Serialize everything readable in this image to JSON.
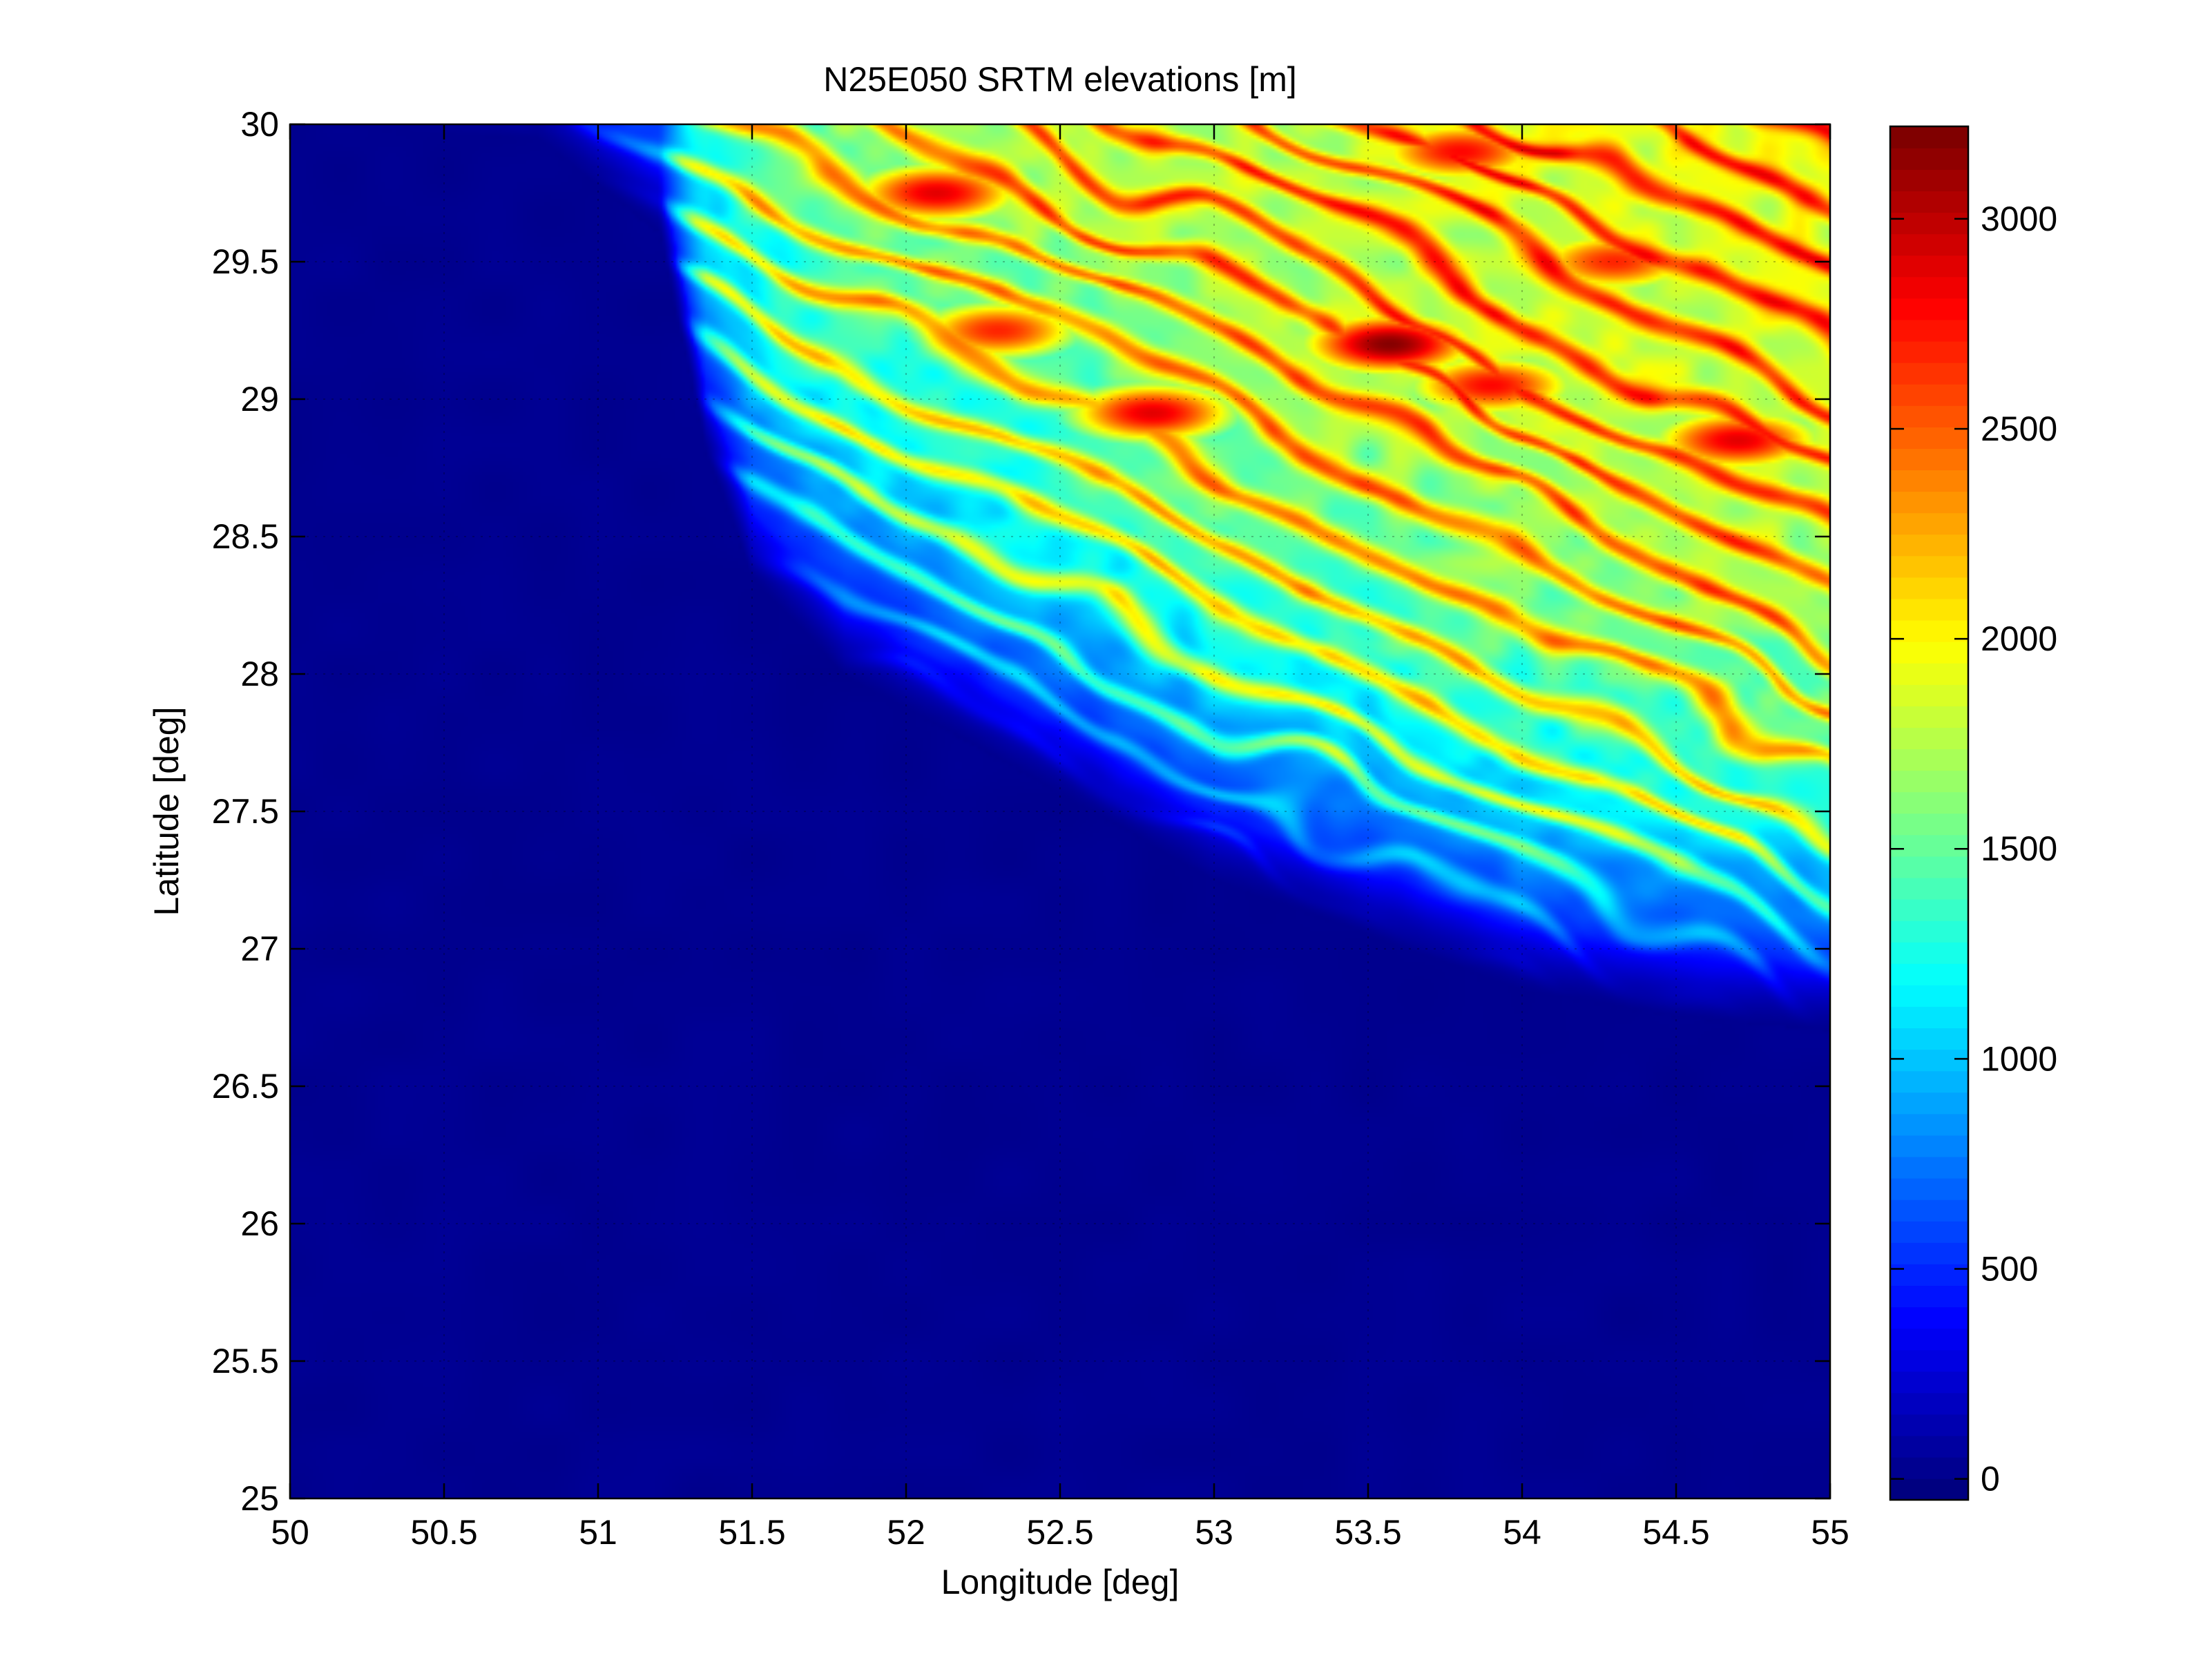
{
  "chart_data": {
    "type": "heatmap",
    "title": "N25E050 SRTM elevations [m]",
    "xlabel": "Longitude [deg]",
    "ylabel": "Latitude [deg]",
    "xlim": [
      50,
      55
    ],
    "ylim": [
      25,
      30
    ],
    "xticks": [
      50,
      50.5,
      51,
      51.5,
      52,
      52.5,
      53,
      53.5,
      54,
      54.5,
      55
    ],
    "xtick_labels": [
      "50",
      "50.5",
      "51",
      "51.5",
      "52",
      "52.5",
      "53",
      "53.5",
      "54",
      "54.5",
      "55"
    ],
    "yticks": [
      25,
      25.5,
      26,
      26.5,
      27,
      27.5,
      28,
      28.5,
      29,
      29.5,
      30
    ],
    "ytick_labels": [
      "25",
      "25.5",
      "26",
      "26.5",
      "27",
      "27.5",
      "28",
      "28.5",
      "29",
      "29.5",
      "30"
    ],
    "grid": true,
    "colormap": "jet",
    "colorbar": {
      "range": [
        -50,
        3220
      ],
      "ticks": [
        0,
        500,
        1000,
        1500,
        2000,
        2500,
        3000
      ],
      "tick_labels": [
        "0",
        "500",
        "1000",
        "1500",
        "2000",
        "2500",
        "3000"
      ]
    },
    "field": {
      "sea_level_value": 0,
      "coastline_lat_at_lon": [
        [
          50.0,
          30.0
        ],
        [
          50.8,
          29.95
        ],
        [
          51.2,
          29.6
        ],
        [
          51.35,
          28.8
        ],
        [
          51.5,
          28.35
        ],
        [
          51.8,
          28.0
        ],
        [
          52.2,
          27.75
        ],
        [
          52.6,
          27.5
        ],
        [
          53.0,
          27.25
        ],
        [
          53.5,
          27.05
        ],
        [
          54.0,
          26.85
        ],
        [
          54.5,
          26.75
        ],
        [
          55.0,
          26.7
        ]
      ],
      "highland_peaks": [
        {
          "lon": 52.1,
          "lat": 29.75,
          "elev": 2900
        },
        {
          "lon": 52.3,
          "lat": 29.25,
          "elev": 2700
        },
        {
          "lon": 52.8,
          "lat": 28.95,
          "elev": 2900
        },
        {
          "lon": 53.57,
          "lat": 29.2,
          "elev": 3200
        },
        {
          "lon": 53.9,
          "lat": 29.05,
          "elev": 2800
        },
        {
          "lon": 54.3,
          "lat": 29.5,
          "elev": 2700
        },
        {
          "lon": 54.7,
          "lat": 28.85,
          "elev": 2900
        },
        {
          "lon": 53.8,
          "lat": 29.9,
          "elev": 2800
        }
      ]
    }
  }
}
